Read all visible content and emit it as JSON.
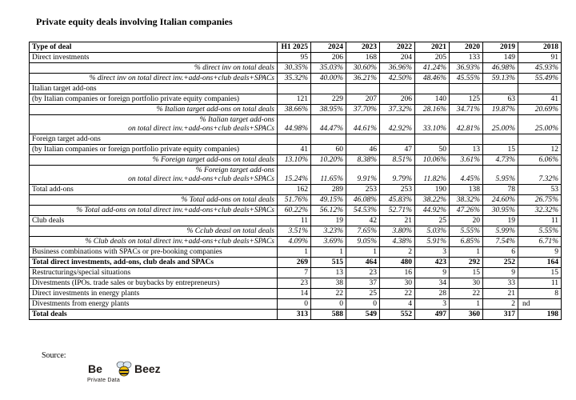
{
  "title": "Private equity deals involving Italian companies",
  "header": {
    "label": "Type of deal",
    "years": [
      "H1 2025",
      "2024",
      "2023",
      "2022",
      "2021",
      "2020",
      "2019",
      "2018"
    ]
  },
  "rows": [
    {
      "label": "Direct investments",
      "values": [
        "95",
        "206",
        "168",
        "204",
        "205",
        "133",
        "149",
        "91"
      ]
    },
    {
      "label": "% direct inv on total deals",
      "values": [
        "30.35%",
        "35.03%",
        "30.60%",
        "36.96%",
        "41.24%",
        "36.93%",
        "46.98%",
        "45.93%"
      ]
    },
    {
      "label": "% direct inv on total direct inv.+add-ons+club deals+SPACs",
      "values": [
        "35.32%",
        "40.00%",
        "36.21%",
        "42.50%",
        "48.46%",
        "45.55%",
        "59.13%",
        "55.49%"
      ]
    },
    {
      "label": "Italian target add-ons",
      "values": [
        "",
        "",
        "",
        "",
        "",
        "",
        "",
        ""
      ]
    },
    {
      "label": "(by Italian companies or foreign portfolio private equity companies)",
      "values": [
        "121",
        "229",
        "207",
        "206",
        "140",
        "125",
        "63",
        "41"
      ]
    },
    {
      "label": "% Italian target add-ons on total deals",
      "values": [
        "38.66%",
        "38.95%",
        "37.70%",
        "37.32%",
        "28.16%",
        "34.71%",
        "19.87%",
        "20.69%"
      ]
    },
    {
      "label_lines": [
        "% Italian target add-ons",
        "on total direct inv.+add-ons+club deals+SPACs"
      ],
      "values": [
        "44.98%",
        "44.47%",
        "44.61%",
        "42.92%",
        "33.10%",
        "42.81%",
        "25.00%",
        "25.00%"
      ]
    },
    {
      "label": "Foreign target add-ons",
      "values": [
        "",
        "",
        "",
        "",
        "",
        "",
        "",
        ""
      ]
    },
    {
      "label": "(by Italian companies or foreign portfolio private equity companies)",
      "values": [
        "41",
        "60",
        "46",
        "47",
        "50",
        "13",
        "15",
        "12"
      ]
    },
    {
      "label": "% Foreign target add-ons on total deals",
      "values": [
        "13.10%",
        "10.20%",
        "8.38%",
        "8.51%",
        "10.06%",
        "3.61%",
        "4.73%",
        "6.06%"
      ]
    },
    {
      "label_lines": [
        "% Foreign target add-ons",
        "on total direct inv.+add-ons+club deals+SPACs"
      ],
      "values": [
        "15.24%",
        "11.65%",
        "9.91%",
        "9.79%",
        "11.82%",
        "4.45%",
        "5.95%",
        "7.32%"
      ]
    },
    {
      "label": "Total add-ons",
      "values": [
        "162",
        "289",
        "253",
        "253",
        "190",
        "138",
        "78",
        "53"
      ]
    },
    {
      "label": "% Total add-ons on total deals",
      "values": [
        "51.76%",
        "49.15%",
        "46.08%",
        "45.83%",
        "38.22%",
        "38.32%",
        "24.60%",
        "26.75%"
      ]
    },
    {
      "label": "% Total add-ons on total direct inv.+add-ons+club deals+SPACs",
      "values": [
        "60.22%",
        "56.12%",
        "54.53%",
        "52.71%",
        "44.92%",
        "47.26%",
        "30.95%",
        "32.32%"
      ]
    },
    {
      "label": "Club deals",
      "values": [
        "11",
        "19",
        "42",
        "21",
        "25",
        "20",
        "19",
        "11"
      ]
    },
    {
      "label": "% Cclub deasl on total deals",
      "values": [
        "3.51%",
        "3.23%",
        "7.65%",
        "3.80%",
        "5.03%",
        "5.55%",
        "5.99%",
        "5.55%"
      ]
    },
    {
      "label": "% Club deals on total direct inv.+add-ons+club deals+SPACs",
      "values": [
        "4.09%",
        "3.69%",
        "9.05%",
        "4.38%",
        "5.91%",
        "6.85%",
        "7.54%",
        "6.71%"
      ]
    },
    {
      "label": "Business combinations with SPACs or pre-booking companies",
      "values": [
        "1",
        "1",
        "1",
        "2",
        "3",
        "1",
        "6",
        "9"
      ]
    },
    {
      "label": "Total direct investments, add-ons, club deals and SPACs",
      "values": [
        "269",
        "515",
        "464",
        "480",
        "423",
        "292",
        "252",
        "164"
      ]
    },
    {
      "label": "Restructurings/special situations",
      "values": [
        "7",
        "13",
        "23",
        "16",
        "9",
        "15",
        "9",
        "15"
      ]
    },
    {
      "label": "Divestments (IPOs. trade sales or buybacks by entrepreneurs)",
      "values": [
        "23",
        "38",
        "37",
        "30",
        "34",
        "30",
        "33",
        "11"
      ]
    },
    {
      "label": "Direct investments in energy plants",
      "values": [
        "14",
        "22",
        "25",
        "22",
        "28",
        "22",
        "21",
        "8"
      ]
    },
    {
      "label": "Divestments from energy plants",
      "values": [
        "0",
        "0",
        "0",
        "4",
        "3",
        "1",
        "2",
        ""
      ]
    },
    {
      "label": "Total deals",
      "values": [
        "313",
        "588",
        "549",
        "552",
        "497",
        "360",
        "317",
        "198"
      ]
    }
  ],
  "nd_note": "nd",
  "source_label": "Source:",
  "logo": {
    "left": "Be",
    "right": "Beez",
    "sub": "Private Data"
  }
}
